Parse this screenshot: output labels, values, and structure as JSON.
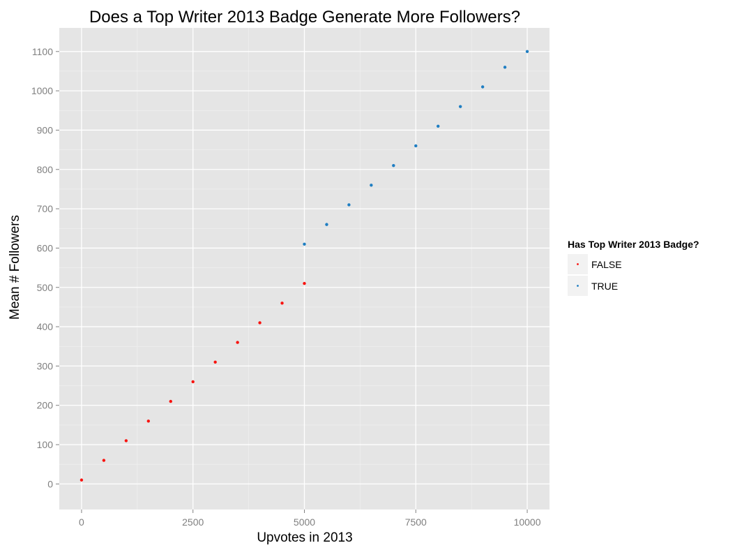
{
  "chart_data": {
    "type": "scatter",
    "title": "Does a Top Writer 2013 Badge Generate More Followers?",
    "xlabel": "Upvotes in 2013",
    "ylabel": "Mean # Followers",
    "xlim": [
      -500,
      10500
    ],
    "ylim": [
      -65,
      1160
    ],
    "x_ticks": [
      0,
      2500,
      5000,
      7500,
      10000
    ],
    "x_tick_labels": [
      "0",
      "2500",
      "5000",
      "7500",
      "10000"
    ],
    "y_ticks": [
      0,
      100,
      200,
      300,
      400,
      500,
      600,
      700,
      800,
      900,
      1000,
      1100
    ],
    "y_tick_labels": [
      "0",
      "100",
      "200",
      "300",
      "400",
      "500",
      "600",
      "700",
      "800",
      "900",
      "1000",
      "1100"
    ],
    "grid": true,
    "legend": {
      "title": "Has Top Writer 2013 Badge?",
      "placement": "right"
    },
    "series": [
      {
        "name": "FALSE",
        "color": "#f8130f",
        "x": [
          0,
          500,
          1000,
          1500,
          2000,
          2500,
          3000,
          3500,
          4000,
          4500,
          5000
        ],
        "y": [
          10,
          60,
          110,
          160,
          210,
          260,
          310,
          360,
          410,
          460,
          510
        ]
      },
      {
        "name": "TRUE",
        "color": "#1f7ec2",
        "x": [
          5000,
          5500,
          6000,
          6500,
          7000,
          7500,
          8000,
          8500,
          9000,
          9500,
          10000
        ],
        "y": [
          610,
          660,
          710,
          760,
          810,
          860,
          910,
          960,
          1010,
          1060,
          1100
        ]
      }
    ]
  }
}
